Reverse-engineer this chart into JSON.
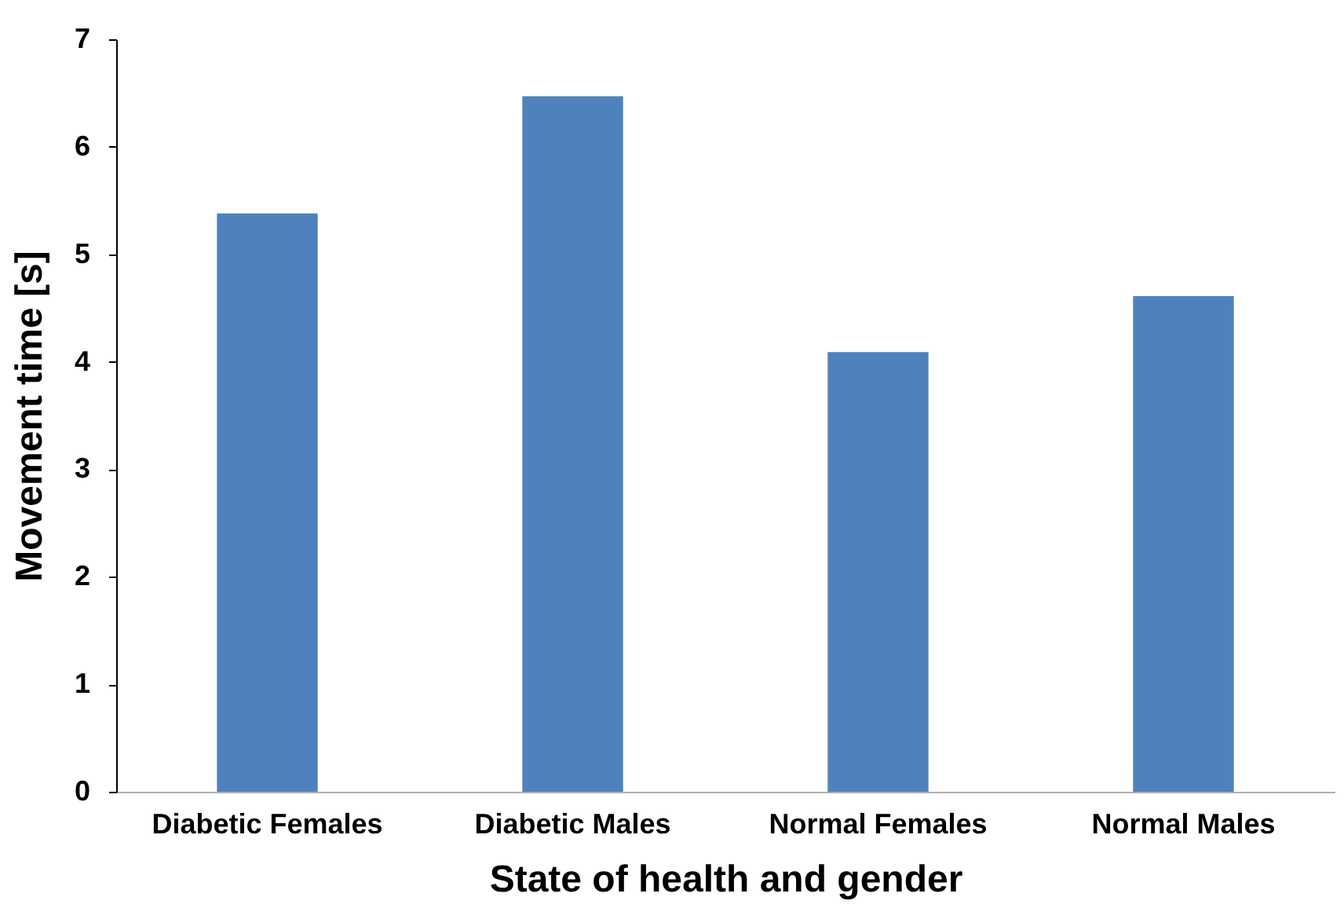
{
  "chart_data": {
    "type": "bar",
    "xlabel": "State of health and gender",
    "ylabel": "Movement time [s]",
    "categories": [
      "Diabetic Females",
      "Diabetic Males",
      "Normal Females",
      "Normal Males"
    ],
    "values": [
      5.38,
      6.47,
      4.09,
      4.61
    ],
    "color": "#4f81bd",
    "ylim": [
      0,
      7
    ],
    "yticks": [
      0,
      1,
      2,
      3,
      4,
      5,
      6,
      7
    ],
    "grid": false
  }
}
